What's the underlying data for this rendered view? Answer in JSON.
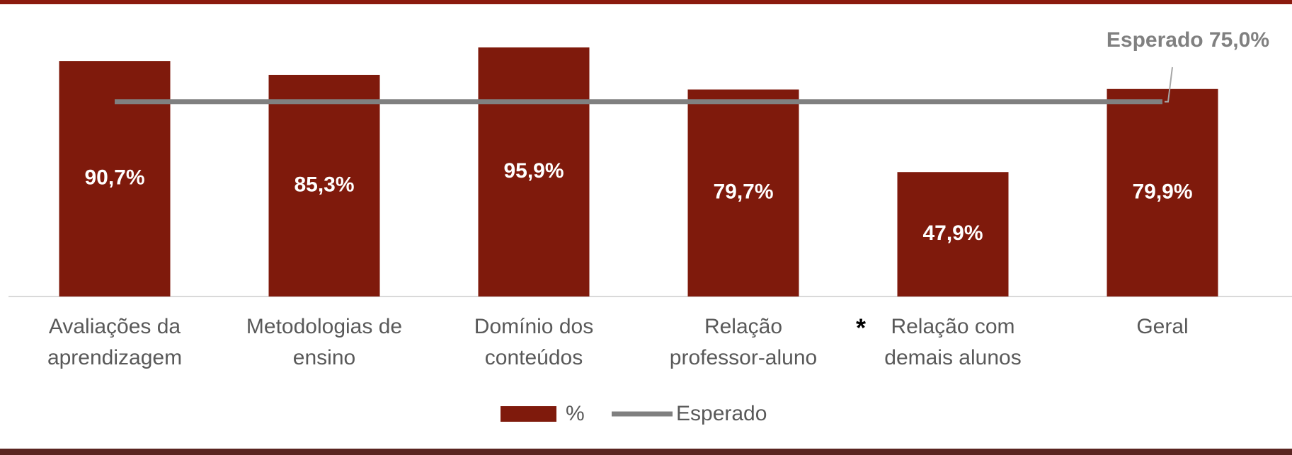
{
  "chart_data": {
    "type": "bar",
    "categories": [
      "Avaliações da\naprendizagem",
      "Metodologias de\nensino",
      "Domínio dos\nconteúdos",
      "Relação\nprofessor-aluno",
      "Relação com\ndemais alunos",
      "Geral"
    ],
    "series": [
      {
        "name": "%",
        "color": "#7f1a0c",
        "values": [
          90.7,
          85.3,
          95.9,
          79.7,
          47.9,
          79.9
        ],
        "value_labels": [
          "90,7%",
          "85,3%",
          "95,9%",
          "79,7%",
          "47,9%",
          "79,9%"
        ]
      },
      {
        "name": "Esperado",
        "type": "line",
        "color": "#808080",
        "values": [
          75,
          75,
          75,
          75,
          75,
          75
        ]
      }
    ],
    "annotations": [
      "Esperado 75,0%",
      "*"
    ],
    "ylim": [
      0,
      100
    ]
  }
}
